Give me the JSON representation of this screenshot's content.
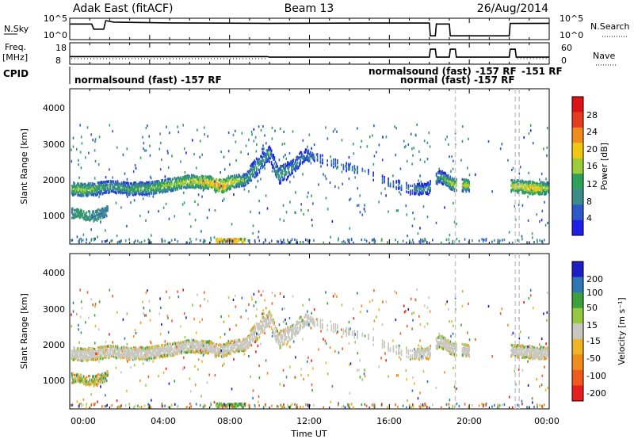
{
  "header": {
    "site": "Adak East (fitACF)",
    "beam": "Beam 13",
    "date": "26/Aug/2014"
  },
  "noise_panel": {
    "left_label": "N.Sky",
    "right_label": "N.Search",
    "left_ticks": [
      "10^5",
      "10^0"
    ],
    "right_ticks": [
      "10^5",
      "10^0"
    ]
  },
  "freq_panel": {
    "left_label_1": "Freq.",
    "left_label_2": "[MHz]",
    "right_label": "Nave",
    "left_ticks": [
      "18",
      "8"
    ],
    "right_ticks": [
      "60",
      "0"
    ]
  },
  "cpid_panel": {
    "label": "CPID",
    "annotations": [
      "normalsound (fast) -157 RF",
      "normalsound (fast)",
      "normal (fast) -157 RF",
      "-157 RF",
      "-151 RF"
    ]
  },
  "x_axis": {
    "label": "Time UT",
    "ticks": [
      "00:00",
      "04:00",
      "08:00",
      "12:00",
      "16:00",
      "20:00",
      "00:00"
    ]
  },
  "power_panel": {
    "y_label": "Slant Range [km]",
    "y_ticks": [
      "4000",
      "3000",
      "2000",
      "1000"
    ],
    "colorbar_label": "Power [dB]",
    "colorbar_ticks": [
      "28",
      "24",
      "20",
      "16",
      "12",
      "8",
      "4"
    ]
  },
  "velocity_panel": {
    "y_label": "Slant Range [km]",
    "y_ticks": [
      "4000",
      "3000",
      "2000",
      "1000"
    ],
    "colorbar_label": "Velocity [m s⁻¹]",
    "colorbar_ticks": [
      "200",
      "100",
      "50",
      "15",
      "-15",
      "-50",
      "-100",
      "-200"
    ]
  },
  "chart_data": {
    "type": "heatmap",
    "x_range_hours": [
      0,
      24
    ],
    "y_range_km": [
      180,
      4600
    ],
    "power_scale_db": [
      0,
      30
    ],
    "velocity_scale": [
      -250,
      250
    ],
    "power_colors": [
      "#1e1ee6",
      "#2d58c8",
      "#3c8c8c",
      "#2ea05a",
      "#9ccc3c",
      "#f0c814",
      "#f08c1e",
      "#e63c1e",
      "#dc1414"
    ],
    "velocity_colors": [
      "#e61e1e",
      "#f05a1e",
      "#f08c1e",
      "#f0b428",
      "#c8c8c0",
      "#96c846",
      "#3ca03c",
      "#2d78b4",
      "#1e1ec8"
    ],
    "main_band": [
      {
        "t": 0.0,
        "r": 1800,
        "p": 15
      },
      {
        "t": 0.6,
        "r": 1750,
        "p": 16
      },
      {
        "t": 1.2,
        "r": 1780,
        "p": 14
      },
      {
        "t": 2.0,
        "r": 1850,
        "p": 12
      },
      {
        "t": 3.0,
        "r": 1780,
        "p": 13
      },
      {
        "t": 4.0,
        "r": 1800,
        "p": 14
      },
      {
        "t": 5.0,
        "r": 1900,
        "p": 16
      },
      {
        "t": 6.0,
        "r": 2000,
        "p": 17
      },
      {
        "t": 7.0,
        "r": 1960,
        "p": 20
      },
      {
        "t": 7.6,
        "r": 1860,
        "p": 22
      },
      {
        "t": 8.2,
        "r": 2000,
        "p": 17
      },
      {
        "t": 8.8,
        "r": 2050,
        "p": 13
      },
      {
        "t": 9.4,
        "r": 2450,
        "p": 11
      },
      {
        "t": 10.0,
        "r": 2800,
        "p": 9
      },
      {
        "t": 10.4,
        "r": 2150,
        "p": 12
      },
      {
        "t": 11.0,
        "r": 2350,
        "p": 10
      },
      {
        "t": 11.8,
        "r": 2750,
        "p": 8
      },
      {
        "t": 14.5,
        "r": 2300,
        "p": 8
      },
      {
        "t": 16.0,
        "r": 1950,
        "p": 8
      },
      {
        "t": 17.0,
        "r": 1780,
        "p": 9
      },
      {
        "t": 17.9,
        "r": 1780,
        "p": 10
      },
      {
        "t": 18.5,
        "r": 2150,
        "p": 12
      },
      {
        "t": 19.2,
        "r": 1900,
        "p": 16
      },
      {
        "t": 22.5,
        "r": 1850,
        "p": 18
      },
      {
        "t": 23.3,
        "r": 1800,
        "p": 20
      },
      {
        "t": 24.0,
        "r": 1800,
        "p": 15
      }
    ],
    "lower_band": [
      {
        "t": 0.0,
        "r": 1100,
        "p": 9
      },
      {
        "t": 0.6,
        "r": 1050,
        "p": 10
      },
      {
        "t": 1.2,
        "r": 1000,
        "p": 8
      },
      {
        "t": 1.8,
        "r": 1150,
        "p": 8
      }
    ],
    "near_range_echo": [
      {
        "t": 7.4,
        "r": 300,
        "p": 18
      },
      {
        "t": 8.0,
        "r": 320,
        "p": 22
      },
      {
        "t": 8.6,
        "r": 300,
        "p": 16
      }
    ],
    "noise_sky": [
      {
        "t": 0.0,
        "v": 0.82
      },
      {
        "t": 1.1,
        "v": 0.82
      },
      {
        "t": 1.2,
        "v": 0.55
      },
      {
        "t": 1.7,
        "v": 0.55
      },
      {
        "t": 1.8,
        "v": 1.0
      },
      {
        "t": 2.2,
        "v": 0.92
      },
      {
        "t": 5.0,
        "v": 0.88
      },
      {
        "t": 10.0,
        "v": 0.86
      },
      {
        "t": 15.0,
        "v": 0.87
      },
      {
        "t": 18.0,
        "v": 0.87
      },
      {
        "t": 18.05,
        "v": 0.2
      },
      {
        "t": 18.3,
        "v": 0.2
      },
      {
        "t": 18.35,
        "v": 0.82
      },
      {
        "t": 19.0,
        "v": 0.82
      },
      {
        "t": 19.05,
        "v": 0.2
      },
      {
        "t": 22.0,
        "v": 0.2
      },
      {
        "t": 22.05,
        "v": 0.85
      },
      {
        "t": 24.0,
        "v": 0.86
      }
    ],
    "frequency_mhz": [
      {
        "t": 0.0,
        "v": 11.0
      },
      {
        "t": 9.9,
        "v": 11.0
      },
      {
        "t": 10.0,
        "v": 10.6
      },
      {
        "t": 18.0,
        "v": 10.6
      },
      {
        "t": 18.05,
        "v": 15.8
      },
      {
        "t": 18.3,
        "v": 15.8
      },
      {
        "t": 18.35,
        "v": 10.6
      },
      {
        "t": 19.0,
        "v": 10.6
      },
      {
        "t": 19.05,
        "v": 15.8
      },
      {
        "t": 19.3,
        "v": 15.8
      },
      {
        "t": 19.35,
        "v": 10.6
      },
      {
        "t": 22.0,
        "v": 10.6
      },
      {
        "t": 22.05,
        "v": 15.8
      },
      {
        "t": 22.3,
        "v": 15.8
      },
      {
        "t": 22.35,
        "v": 10.6
      },
      {
        "t": 24.0,
        "v": 10.6
      }
    ],
    "nave_level": 9,
    "scan_gaps_hours": [
      19.3,
      22.3,
      22.5
    ]
  }
}
